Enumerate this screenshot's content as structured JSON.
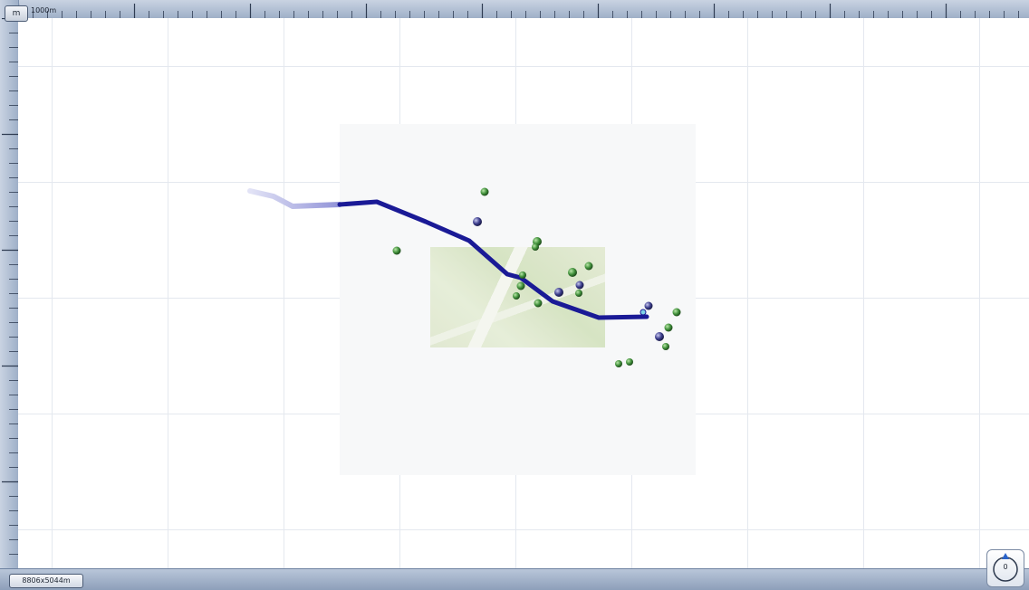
{
  "ruler": {
    "unit_button": "m",
    "scale_label": "1000m"
  },
  "status": {
    "dimensions": "8806x5044m"
  },
  "compass": {
    "heading": "0"
  },
  "colors": {
    "track_dark": "#1a1a96",
    "track_faded": "#8d8fd6",
    "marker_green": "#3f8f3a",
    "marker_purple": "#3b3d8c"
  },
  "icons": [
    "compass-icon",
    "waypoint-green-icon",
    "waypoint-purple-icon"
  ]
}
